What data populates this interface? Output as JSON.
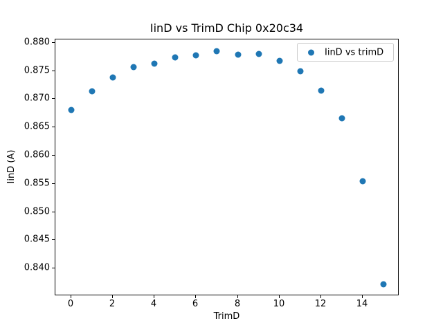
{
  "chart_data": {
    "type": "scatter",
    "title": "IinD vs TrimD Chip 0x20c34",
    "xlabel": "TrimD",
    "ylabel": "IinD (A)",
    "legend": {
      "label": "IinD vs trimD",
      "position": "upper right"
    },
    "marker_color": "#1f77b4",
    "x": [
      0,
      1,
      2,
      3,
      4,
      5,
      6,
      7,
      8,
      9,
      10,
      11,
      12,
      13,
      14,
      15
    ],
    "y": [
      0.8681,
      0.8714,
      0.8738,
      0.8757,
      0.8763,
      0.8774,
      0.8778,
      0.8785,
      0.8779,
      0.878,
      0.8768,
      0.8749,
      0.8715,
      0.8666,
      0.8555,
      0.8372
    ],
    "xlim": [
      -0.75,
      15.75
    ],
    "ylim": [
      0.8351,
      0.8806
    ],
    "xticks": [
      0,
      2,
      4,
      6,
      8,
      10,
      12,
      14
    ],
    "xtick_labels": [
      "0",
      "2",
      "4",
      "6",
      "8",
      "10",
      "12",
      "14"
    ],
    "yticks": [
      0.88,
      0.875,
      0.87,
      0.865,
      0.86,
      0.855,
      0.85,
      0.845,
      0.84
    ],
    "ytick_labels": [
      "0.880",
      "0.875",
      "0.870",
      "0.865",
      "0.860",
      "0.855",
      "0.850",
      "0.845",
      "0.840"
    ],
    "grid": false,
    "background_color": "#ffffff",
    "text_color": "#000000"
  }
}
